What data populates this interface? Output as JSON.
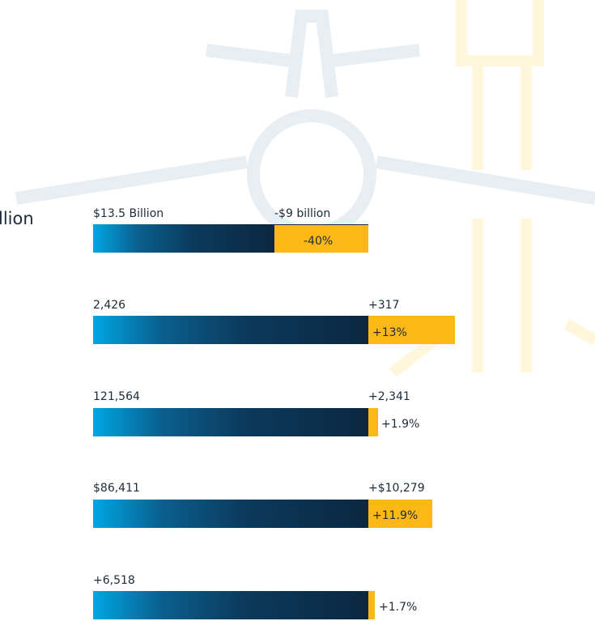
{
  "side_label": "llion",
  "rows": [
    {
      "total": "$13.5 Billion",
      "change": "-$9 billion",
      "percent": "-40%"
    },
    {
      "total": "2,426",
      "change": "+317",
      "percent": "+13%"
    },
    {
      "total": "121,564",
      "change": "+2,341",
      "percent": "+1.9%"
    },
    {
      "total": "$86,411",
      "change": "+$10,279",
      "percent": "+11.9%"
    },
    {
      "total": "+6,518",
      "percent": "+1.7%"
    }
  ]
}
